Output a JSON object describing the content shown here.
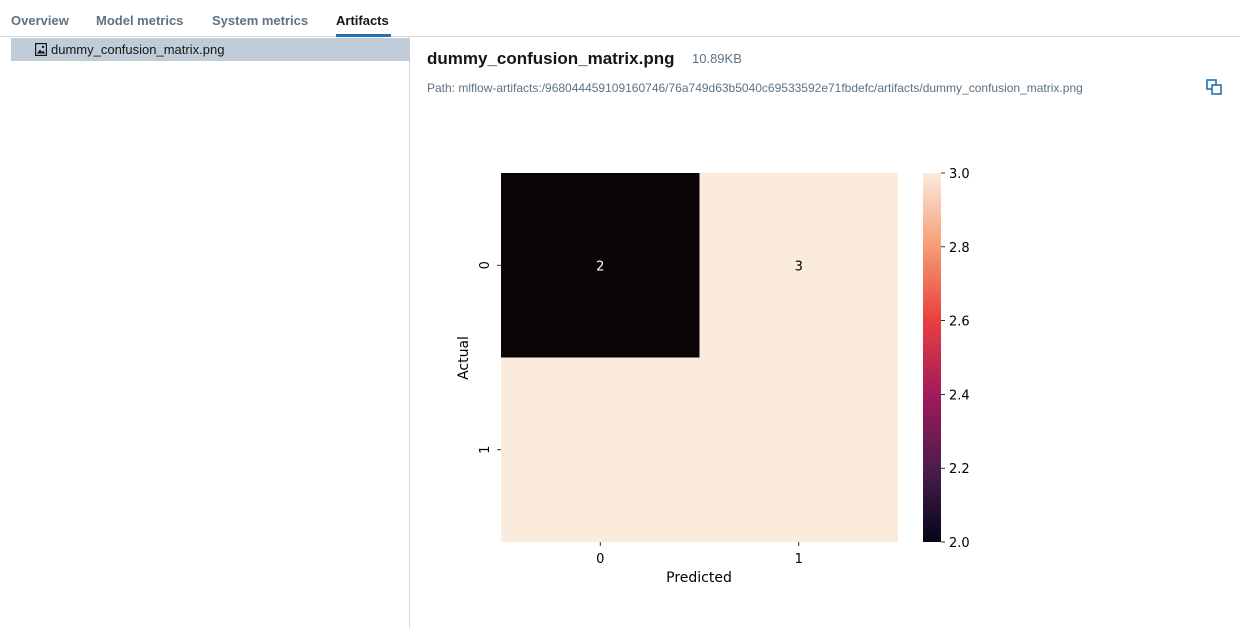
{
  "tabs": [
    {
      "label": "Overview"
    },
    {
      "label": "Model metrics"
    },
    {
      "label": "System metrics"
    },
    {
      "label": "Artifacts"
    }
  ],
  "active_tab": "Artifacts",
  "sidebar": {
    "files": [
      {
        "name": "dummy_confusion_matrix.png",
        "icon": "image-file-icon",
        "selected": true
      }
    ]
  },
  "artifact": {
    "name": "dummy_confusion_matrix.png",
    "size": "10.89KB",
    "path": "Path: mlflow-artifacts:/968044459109160746/76a749d63b5040c69533592e71fbdefc/artifacts/dummy_confusion_matrix.png",
    "copy_icon": "copy-icon"
  },
  "colors": {
    "accent": "#2272b4",
    "selected_row": "#c0cdd8",
    "cell_low": "#0b0405",
    "cell_high": "#faebdd"
  },
  "chart_data": {
    "type": "heatmap",
    "xlabel": "Predicted",
    "ylabel": "Actual",
    "x_categories": [
      "0",
      "1"
    ],
    "y_categories": [
      "0",
      "1"
    ],
    "values": [
      [
        2,
        3
      ],
      [
        3,
        3
      ]
    ],
    "annotations": [
      [
        "2",
        "3"
      ],
      [
        "",
        ""
      ]
    ],
    "colorbar": {
      "min": 2.0,
      "max": 3.0,
      "ticks": [
        "2.0",
        "2.2",
        "2.4",
        "2.6",
        "2.8",
        "3.0"
      ],
      "colormap": "rocket"
    }
  }
}
